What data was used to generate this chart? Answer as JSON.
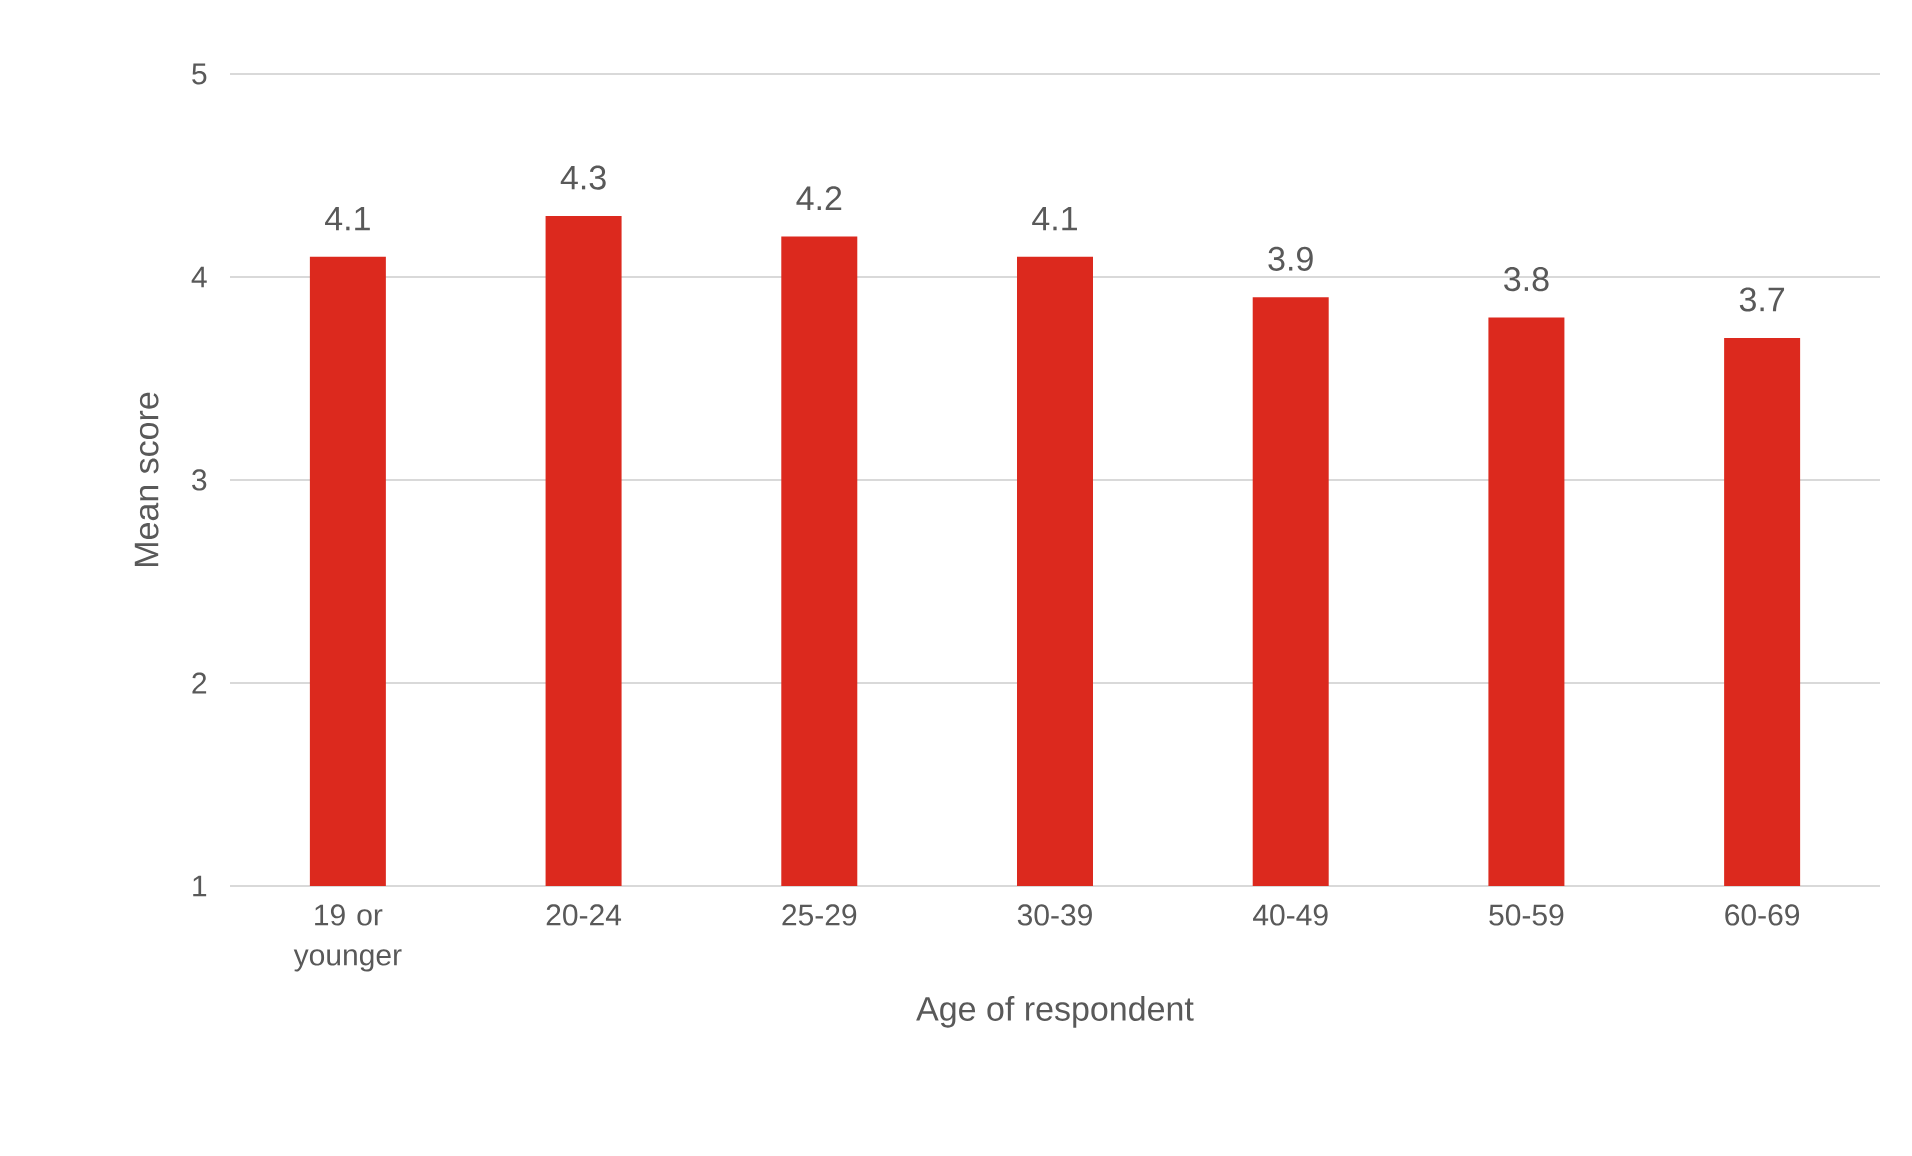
{
  "chart_data": {
    "type": "bar",
    "xlabel": "Age of respondent",
    "ylabel": "Mean score",
    "categories": [
      "19 or younger",
      "20-24",
      "25-29",
      "30-39",
      "40-49",
      "50-59",
      "60-69"
    ],
    "values": [
      4.1,
      4.3,
      4.2,
      4.1,
      3.9,
      3.8,
      3.7
    ],
    "color": "#dc291e",
    "ylim": [
      1,
      5
    ],
    "yticks": [
      1,
      2,
      3,
      4,
      5
    ],
    "grid": "y",
    "data_labels": true
  }
}
